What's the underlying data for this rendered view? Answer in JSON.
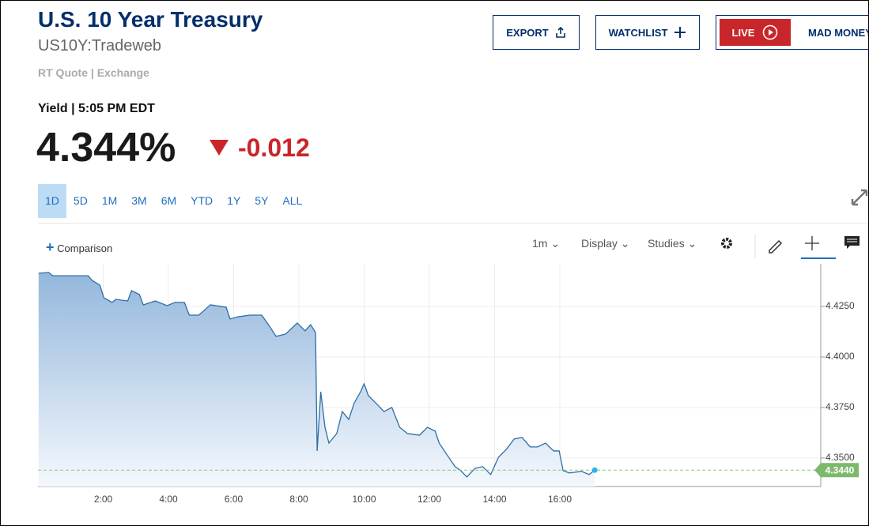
{
  "header": {
    "title": "U.S. 10 Year Treasury",
    "symbol": "US10Y:Tradeweb",
    "quote_source": "RT Quote | Exchange",
    "yield_time": "Yield | 5:05 PM EDT",
    "price": "4.344%",
    "change": "-0.012"
  },
  "buttons": {
    "export": "EXPORT",
    "watchlist": "WATCHLIST",
    "live": "LIVE",
    "mad_money": "MAD MONEY"
  },
  "ranges": [
    "1D",
    "5D",
    "1M",
    "3M",
    "6M",
    "YTD",
    "1Y",
    "5Y",
    "ALL"
  ],
  "selected_range": "1D",
  "toolbar": {
    "comparison": "Comparison",
    "interval": "1m",
    "display": "Display",
    "studies": "Studies"
  },
  "chart_data": {
    "type": "line",
    "color": "#2e6ea6",
    "grid": true,
    "x": [
      0.02,
      0.33,
      0.45,
      1.54,
      1.66,
      1.9,
      2.02,
      2.27,
      2.39,
      2.75,
      2.87,
      3.11,
      3.23,
      3.6,
      3.96,
      4.2,
      4.49,
      4.64,
      4.93,
      5.29,
      5.77,
      5.89,
      6.14,
      6.5,
      6.86,
      7.1,
      7.3,
      7.59,
      7.95,
      8.19,
      8.36,
      8.51,
      8.56,
      8.67,
      8.8,
      8.92,
      9.16,
      9.33,
      9.53,
      9.69,
      9.89,
      10.0,
      10.13,
      10.37,
      10.61,
      10.85,
      11.09,
      11.33,
      11.7,
      11.94,
      12.18,
      12.3,
      12.54,
      12.79,
      12.96,
      13.15,
      13.4,
      13.64,
      13.88,
      14.12,
      14.36,
      14.6,
      14.84,
      15.09,
      15.32,
      15.56,
      15.81,
      15.98,
      16.1,
      16.29,
      16.66,
      16.9,
      17.07
    ],
    "values": [
      4.4414,
      4.4418,
      4.4402,
      4.4402,
      4.4379,
      4.4355,
      4.4293,
      4.427,
      4.4285,
      4.4277,
      4.4328,
      4.4309,
      4.4258,
      4.4277,
      4.4254,
      4.427,
      4.427,
      4.4207,
      4.4207,
      4.4258,
      4.4246,
      4.4188,
      4.4199,
      4.4207,
      4.4207,
      4.4152,
      4.4102,
      4.4113,
      4.4168,
      4.4129,
      4.416,
      4.4121,
      4.3535,
      4.3828,
      4.3652,
      4.3574,
      4.3621,
      4.373,
      4.3691,
      4.377,
      4.3828,
      4.3867,
      4.3809,
      4.377,
      4.373,
      4.375,
      4.3652,
      4.3621,
      4.3613,
      4.3652,
      4.3633,
      4.3574,
      4.3516,
      4.3457,
      4.3438,
      4.3406,
      4.3449,
      4.3457,
      4.3418,
      4.3504,
      4.3543,
      4.3594,
      4.3602,
      4.3555,
      4.3555,
      4.3574,
      4.3535,
      4.3535,
      4.3438,
      4.3426,
      4.3434,
      4.3418,
      4.344
    ],
    "xlim": [
      0,
      24
    ],
    "xticks": [
      {
        "value": 2,
        "label": "2:00"
      },
      {
        "value": 4,
        "label": "4:00"
      },
      {
        "value": 6,
        "label": "6:00"
      },
      {
        "value": 8,
        "label": "8:00"
      },
      {
        "value": 10,
        "label": "10:00"
      },
      {
        "value": 12,
        "label": "12:00"
      },
      {
        "value": 14,
        "label": "14:00"
      },
      {
        "value": 16,
        "label": "16:00"
      }
    ],
    "ylim": [
      4.3359,
      4.4461
    ],
    "yticks": [
      {
        "value": 4.35,
        "label": "4.3500"
      },
      {
        "value": 4.375,
        "label": "4.3750"
      },
      {
        "value": 4.4,
        "label": "4.4000"
      },
      {
        "value": 4.425,
        "label": "4.4250"
      }
    ],
    "last_price": 4.344,
    "last_price_label": "4.3440"
  }
}
